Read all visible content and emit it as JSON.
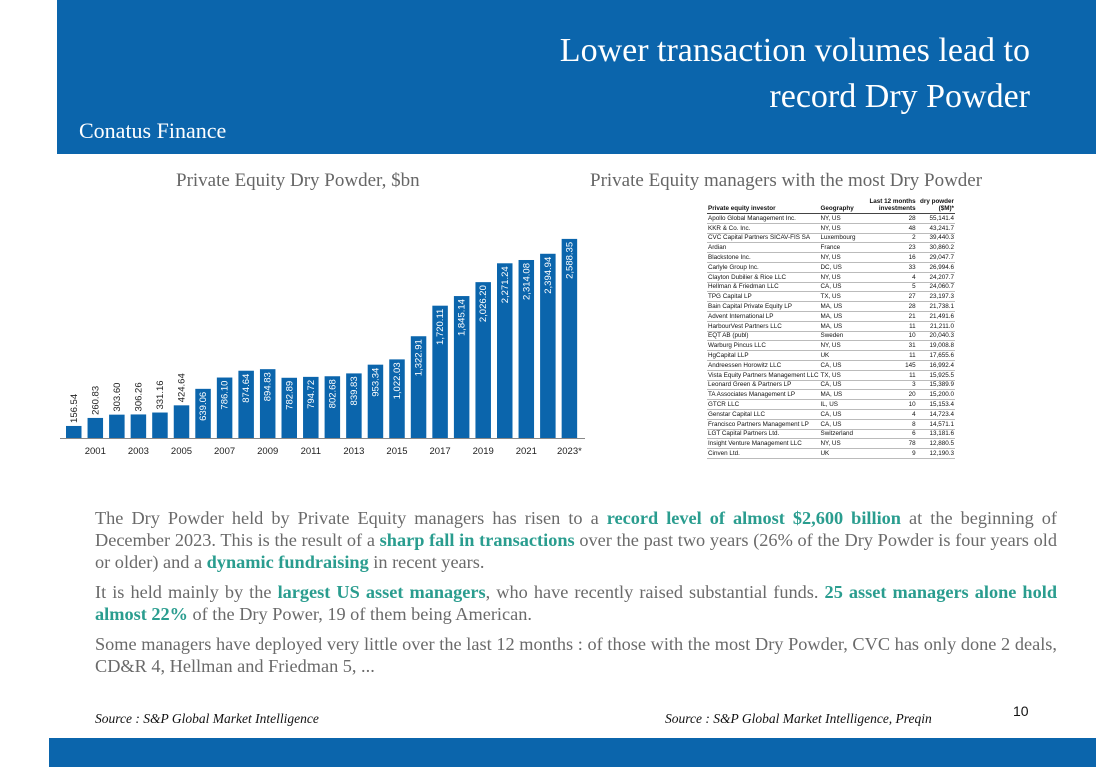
{
  "header": {
    "title_line1": "Lower transaction volumes lead to",
    "title_line2": "record Dry Powder",
    "brand": "Conatus Finance"
  },
  "captions": {
    "left": "Private Equity Dry Powder, $bn",
    "right": "Private Equity managers with the most Dry Powder"
  },
  "chart_data": {
    "type": "bar",
    "title": "Private Equity Dry Powder, $bn",
    "bar_color": "#0b65ac",
    "categories": [
      "2000",
      "2001",
      "2002",
      "2003",
      "2004",
      "2005",
      "2006",
      "2007",
      "2008",
      "2009",
      "2010",
      "2011",
      "2012",
      "2013",
      "2014",
      "2015",
      "2016",
      "2017",
      "2018",
      "2019",
      "2020",
      "2021",
      "2022",
      "2023*"
    ],
    "tick_labels": [
      "",
      "2001",
      "",
      "2003",
      "",
      "2005",
      "",
      "2007",
      "",
      "2009",
      "",
      "2011",
      "",
      "2013",
      "",
      "2015",
      "",
      "2017",
      "",
      "2019",
      "",
      "2021",
      "",
      "2023*"
    ],
    "values": [
      156.54,
      260.83,
      303.6,
      306.26,
      331.16,
      424.64,
      639.06,
      786.1,
      874.64,
      894.83,
      782.89,
      794.72,
      802.68,
      839.83,
      953.34,
      1022.03,
      1322.91,
      1720.11,
      1845.14,
      2026.2,
      2271.24,
      2314.08,
      2394.94,
      2588.35
    ],
    "labels": [
      "156.54",
      "260.83",
      "303.60",
      "306.26",
      "331.16",
      "424.64",
      "639.06",
      "786.10",
      "874.64",
      "894.83",
      "782.89",
      "794.72",
      "802.68",
      "839.83",
      "953.34",
      "1,022.03",
      "1,322.91",
      "1,720.11",
      "1,845.14",
      "2,026.20",
      "2,271.24",
      "2,314.08",
      "2,394.94",
      "2,588.35"
    ],
    "ylim": [
      0,
      2600
    ],
    "xlabel": "",
    "ylabel": "",
    "grid": false
  },
  "table": {
    "headers": [
      "Private equity investor",
      "Geography",
      "Last 12 months investments",
      "dry powder ($M)*"
    ],
    "rows": [
      [
        "Apollo Global Management Inc.",
        "NY, US",
        "28",
        "55,141.4"
      ],
      [
        "KKR & Co. Inc.",
        "NY, US",
        "48",
        "43,241.7"
      ],
      [
        "CVC Capital Partners SICAV-FIS SA",
        "Luxembourg",
        "2",
        "39,440.3"
      ],
      [
        "Ardian",
        "France",
        "23",
        "30,860.2"
      ],
      [
        "Blackstone Inc.",
        "NY, US",
        "16",
        "29,047.7"
      ],
      [
        "Carlyle Group Inc.",
        "DC, US",
        "33",
        "26,994.6"
      ],
      [
        "Clayton Dubilier & Rice LLC",
        "NY, US",
        "4",
        "24,207.7"
      ],
      [
        "Hellman & Friedman LLC",
        "CA, US",
        "5",
        "24,060.7"
      ],
      [
        "TPG Capital LP",
        "TX, US",
        "27",
        "23,197.3"
      ],
      [
        "Bain Capital Private Equity LP",
        "MA, US",
        "28",
        "21,738.1"
      ],
      [
        "Advent International LP",
        "MA, US",
        "21",
        "21,491.6"
      ],
      [
        "HarbourVest Partners LLC",
        "MA, US",
        "11",
        "21,211.0"
      ],
      [
        "EQT AB (publ)",
        "Sweden",
        "10",
        "20,040.3"
      ],
      [
        "Warburg Pincus LLC",
        "NY, US",
        "31",
        "19,008.8"
      ],
      [
        "HgCapital LLP",
        "UK",
        "11",
        "17,655.6"
      ],
      [
        "Andreessen Horowitz LLC",
        "CA, US",
        "145",
        "16,992.4"
      ],
      [
        "Vista Equity Partners Management LLC",
        "TX, US",
        "11",
        "15,925.5"
      ],
      [
        "Leonard Green & Partners LP",
        "CA, US",
        "3",
        "15,389.9"
      ],
      [
        "TA Associates Management LP",
        "MA, US",
        "20",
        "15,200.0"
      ],
      [
        "GTCR LLC",
        "IL, US",
        "10",
        "15,153.4"
      ],
      [
        "Genstar Capital LLC",
        "CA, US",
        "4",
        "14,723.4"
      ],
      [
        "Francisco Partners Management LP",
        "CA, US",
        "8",
        "14,571.1"
      ],
      [
        "LGT Capital Partners Ltd.",
        "Switzerland",
        "6",
        "13,181.6"
      ],
      [
        "Insight Venture Management LLC",
        "NY, US",
        "78",
        "12,880.5"
      ],
      [
        "Cinven Ltd.",
        "UK",
        "9",
        "12,190.3"
      ]
    ]
  },
  "body": {
    "p1_a": "The Dry Powder held by Private Equity managers has risen to a ",
    "p1_b": "record level of almost $2,600 billion",
    "p1_c": " at the beginning of December 2023. This is the result of a ",
    "p1_d": "sharp fall in transactions",
    "p1_e": " over the past two years (26% of the Dry Powder is four years old or older) and a ",
    "p1_f": "dynamic fundraising",
    "p1_g": " in recent years.",
    "p2_a": "It is held mainly by the ",
    "p2_b": "largest US asset managers",
    "p2_c": ", who have recently raised substantial funds. ",
    "p2_d": "25 asset managers alone hold almost 22%",
    "p2_e": " of the Dry Power, 19 of them being American.",
    "p3": "Some managers have deployed very little over the last 12 months : of those with the most Dry Powder, CVC has only done 2 deals, CD&R 4, Hellman and Friedman 5, ..."
  },
  "sources": {
    "left": "Source : S&P Global Market Intelligence",
    "right": "Source : S&P Global Market Intelligence, Preqin"
  },
  "page_number": "10",
  "colors": {
    "brand_blue": "#0b65ac",
    "highlight": "#2a9d8f"
  }
}
